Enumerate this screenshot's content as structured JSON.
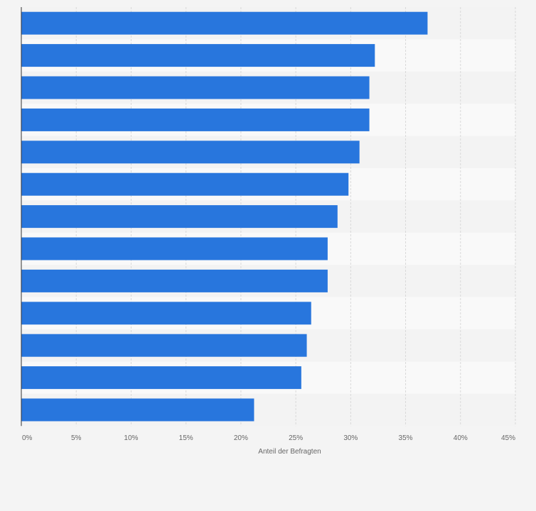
{
  "chart_data": {
    "type": "bar",
    "orientation": "horizontal",
    "categories": [
      "",
      "",
      "",
      "",
      "",
      "",
      "",
      "",
      "",
      "",
      "",
      "",
      ""
    ],
    "values": [
      37,
      32.2,
      31.7,
      31.7,
      30.8,
      29.8,
      28.8,
      27.9,
      27.9,
      26.4,
      26.0,
      25.5,
      21.2
    ],
    "xlabel": "Anteil der Befragten",
    "ylabel": "",
    "xlim": [
      0,
      45
    ],
    "x_ticks": [
      "0%",
      "5%",
      "10%",
      "15%",
      "20%",
      "25%",
      "30%",
      "35%",
      "40%",
      "45%"
    ],
    "x_tick_values": [
      0,
      5,
      10,
      15,
      20,
      25,
      30,
      35,
      40,
      45
    ],
    "grid": true,
    "colors": {
      "bar": "#2876dd",
      "band_light": "#f9f9f9",
      "band_dark": "#f3f3f3",
      "grid": "#d9d9d9",
      "axis": "#333333"
    }
  }
}
